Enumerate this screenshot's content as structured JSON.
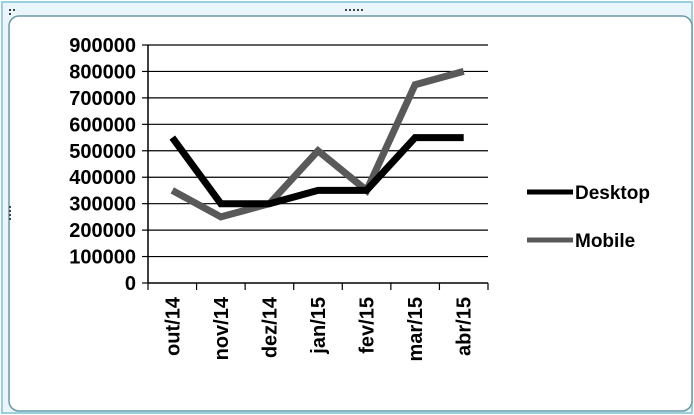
{
  "chart_data": {
    "type": "line",
    "categories": [
      "out/14",
      "nov/14",
      "dez/14",
      "jan/15",
      "fev/15",
      "mar/15",
      "abr/15"
    ],
    "series": [
      {
        "name": "Desktop",
        "color": "#000000",
        "values": [
          550000,
          300000,
          300000,
          350000,
          350000,
          550000,
          550000
        ]
      },
      {
        "name": "Mobile",
        "color": "#595959",
        "values": [
          350000,
          250000,
          300000,
          500000,
          350000,
          750000,
          800000
        ]
      }
    ],
    "yticks": [
      0,
      100000,
      200000,
      300000,
      400000,
      500000,
      600000,
      700000,
      800000,
      900000
    ],
    "ylim": [
      0,
      900000
    ],
    "grid": true,
    "legend": "right",
    "frame_color": "#7ec8d8"
  }
}
